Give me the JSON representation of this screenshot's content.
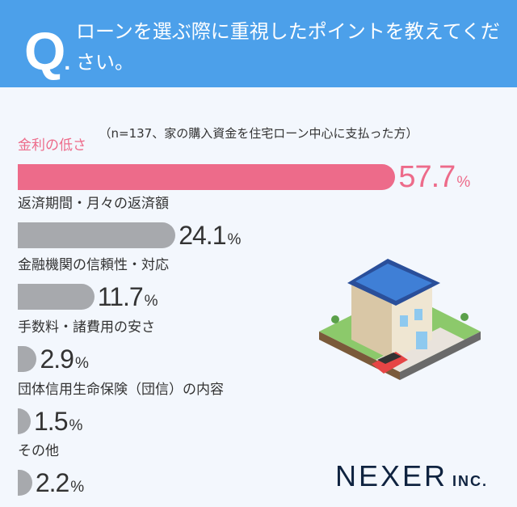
{
  "header": {
    "q_mark": "Q",
    "question": "ローンを選ぶ際に重視したポイントを教えてください。"
  },
  "subtitle": "（n=137、家の購入資金を住宅ローン中心に支払った方）",
  "colors": {
    "header": "#4ca0ea",
    "highlight": "#ed6b8a",
    "bar": "#a7a9ad"
  },
  "chart_data": {
    "type": "bar",
    "orientation": "horizontal",
    "categories": [
      "金利の低さ",
      "返済期間・月々の返済額",
      "金融機関の信頼性・対応",
      "手数料・諸費用の安さ",
      "団体信用生命保険（団信）の内容",
      "その他"
    ],
    "values": [
      57.7,
      24.1,
      11.7,
      2.9,
      1.5,
      2.2
    ],
    "value_labels": [
      "57.7",
      "24.1",
      "11.7",
      "2.9",
      "1.5",
      "2.2"
    ],
    "unit": "%",
    "highlight_index": 0
  },
  "logo": {
    "name": "NEXER",
    "suffix": "INC."
  }
}
